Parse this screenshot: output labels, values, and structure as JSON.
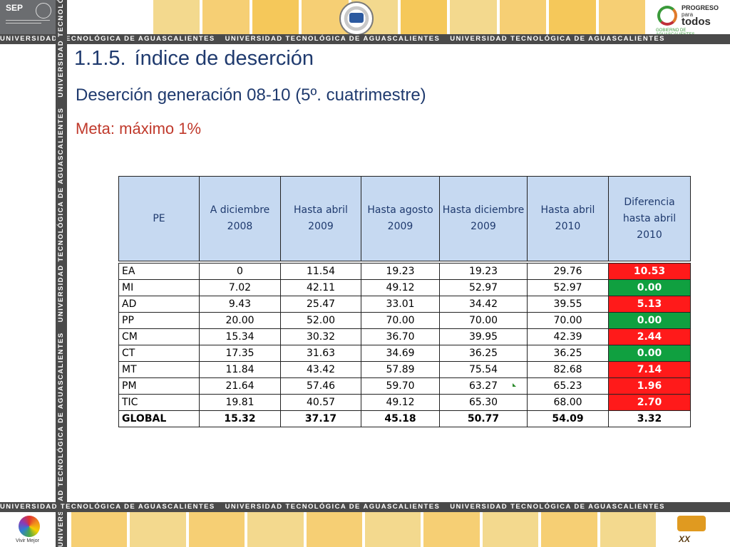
{
  "header": {
    "sep_label": "SEP",
    "progreso_line1": "PROGRESO",
    "progreso_line2": "para",
    "progreso_line3": "todos",
    "gobierno": "GOBIERNO DE AGUASCALIENTES"
  },
  "band_text": "UNIVERSIDAD TECNOLÓGICA DE AGUASCALIENTES",
  "footer": {
    "vivir": "Vivir Mejor",
    "xx": "XX"
  },
  "title": {
    "number": "1.1.5.",
    "text": "índice de deserción"
  },
  "subtitle": "Deserción generación 08-10 (5º. cuatrimestre)",
  "goal": "Meta: máximo 1%",
  "colors": {
    "header_fill": "#c6d9f1",
    "positive": "#ff1a1a",
    "zero": "#10a040",
    "title": "#1f3a6e",
    "goal": "#c0392b"
  },
  "table": {
    "headers": [
      "PE",
      "A diciembre 2008",
      "Hasta abril 2009",
      "Hasta agosto 2009",
      "Hasta diciembre 2009",
      "Hasta abril 2010",
      "Diferencia hasta abril 2010"
    ],
    "rows": [
      {
        "pe": "EA",
        "a": "0",
        "b": "11.54",
        "c": "19.23",
        "d": "19.23",
        "e": "29.76",
        "f": "10.53",
        "status": "red"
      },
      {
        "pe": "MI",
        "a": "7.02",
        "b": "42.11",
        "c": "49.12",
        "d": "52.97",
        "e": "52.97",
        "f": "0.00",
        "status": "green"
      },
      {
        "pe": "AD",
        "a": "9.43",
        "b": "25.47",
        "c": "33.01",
        "d": "34.42",
        "e": "39.55",
        "f": "5.13",
        "status": "red"
      },
      {
        "pe": "PP",
        "a": "20.00",
        "b": "52.00",
        "c": "70.00",
        "d": "70.00",
        "e": "70.00",
        "f": "0.00",
        "status": "green"
      },
      {
        "pe": "CM",
        "a": "15.34",
        "b": "30.32",
        "c": "36.70",
        "d": "39.95",
        "e": "42.39",
        "f": "2.44",
        "status": "red"
      },
      {
        "pe": "CT",
        "a": "17.35",
        "b": "31.63",
        "c": "34.69",
        "d": "36.25",
        "e": "36.25",
        "f": "0.00",
        "status": "green"
      },
      {
        "pe": "MT",
        "a": "11.84",
        "b": "43.42",
        "c": "57.89",
        "d": "75.54",
        "e": "82.68",
        "f": "7.14",
        "status": "red"
      },
      {
        "pe": "PM",
        "a": "21.64",
        "b": "57.46",
        "c": "59.70",
        "d": "63.27",
        "e": "65.23",
        "f": "1.96",
        "status": "red"
      },
      {
        "pe": "TIC",
        "a": "19.81",
        "b": "40.57",
        "c": "49.12",
        "d": "65.30",
        "e": "68.00",
        "f": "2.70",
        "status": "red"
      }
    ],
    "global": {
      "pe": "GLOBAL",
      "a": "15.32",
      "b": "37.17",
      "c": "45.18",
      "d": "50.77",
      "e": "54.09",
      "f": "3.32"
    }
  }
}
